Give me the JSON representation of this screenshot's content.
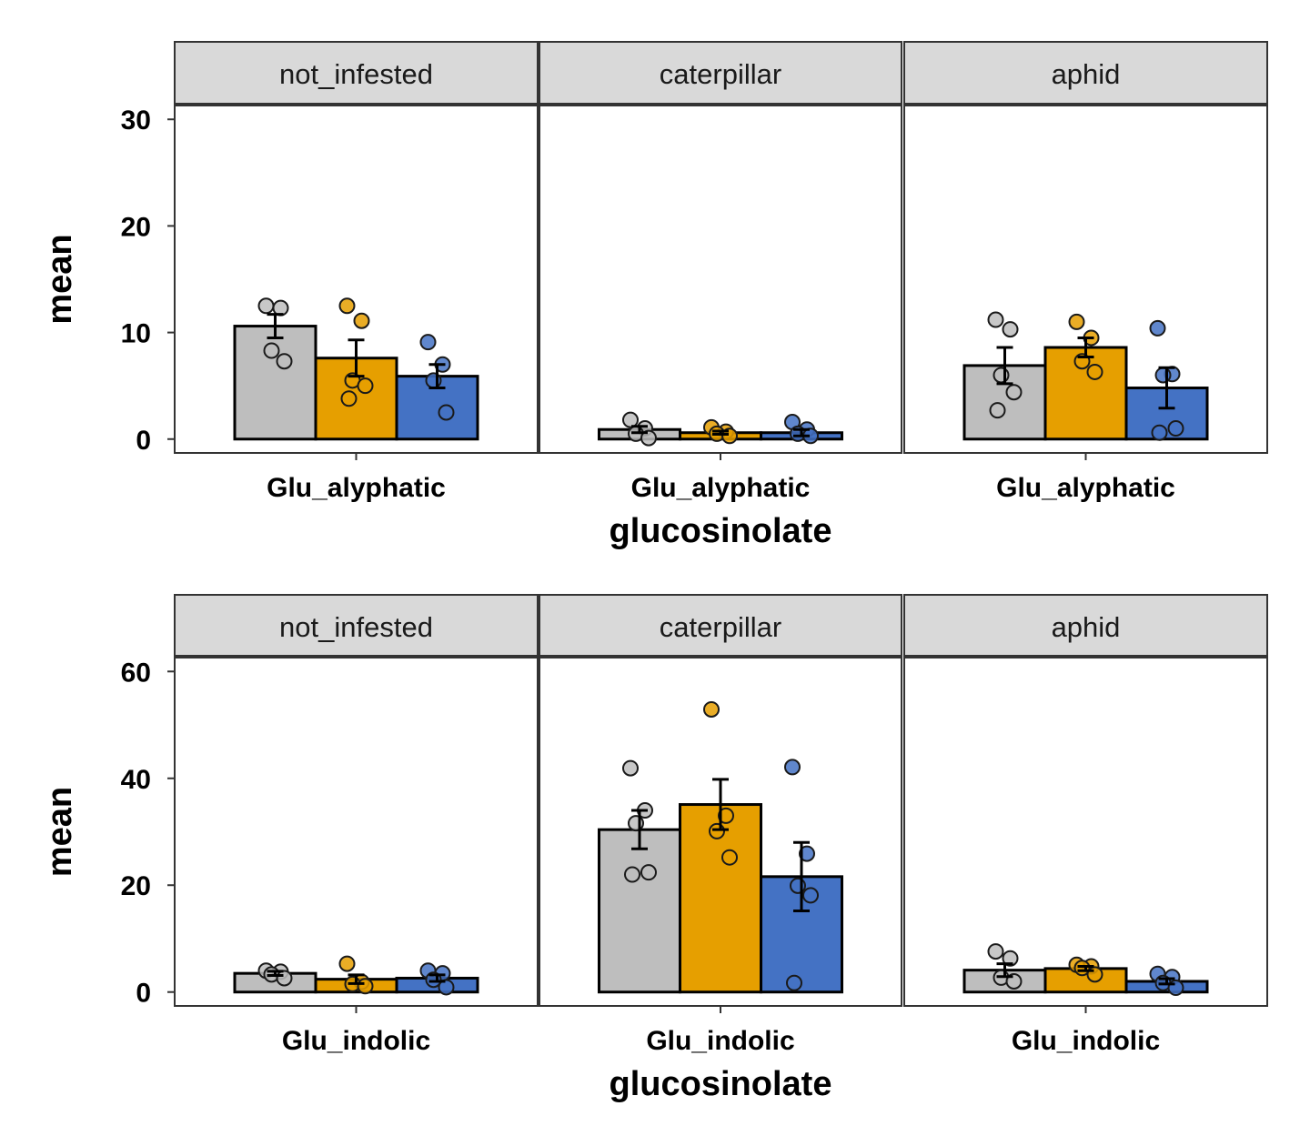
{
  "colors": {
    "strip_fill": "#d9d9d9",
    "frame": "#333333",
    "background": "#ffffff",
    "series": [
      "#bebebe",
      "#e69f00",
      "#4472c4"
    ]
  },
  "chart_data": [
    {
      "type": "bar",
      "ylabel": "mean",
      "xlabel": "glucosinolate",
      "ylim": [
        -1.3,
        31.3
      ],
      "yticks": [
        0,
        10,
        20,
        30
      ],
      "grid": false,
      "legend": "none",
      "facets": [
        {
          "label": "not_infested",
          "category": "Glu_alyphatic",
          "bars": [
            {
              "mean": 10.6,
              "se": 1.1,
              "points": [
                12.5,
                12.3,
                8.3,
                7.3
              ]
            },
            {
              "mean": 7.6,
              "se": 1.7,
              "points": [
                12.5,
                11.1,
                5.5,
                5.0,
                3.8
              ]
            },
            {
              "mean": 5.9,
              "se": 1.1,
              "points": [
                9.1,
                7.0,
                5.5,
                2.5
              ]
            }
          ]
        },
        {
          "label": "caterpillar",
          "category": "Glu_alyphatic",
          "bars": [
            {
              "mean": 0.9,
              "se": 0.3,
              "points": [
                1.8,
                1.0,
                0.5,
                0.1
              ]
            },
            {
              "mean": 0.6,
              "se": 0.15,
              "points": [
                1.1,
                0.7,
                0.5,
                0.3
              ]
            },
            {
              "mean": 0.6,
              "se": 0.3,
              "points": [
                1.6,
                0.9,
                0.5,
                0.3
              ]
            }
          ]
        },
        {
          "label": "aphid",
          "category": "Glu_alyphatic",
          "bars": [
            {
              "mean": 6.9,
              "se": 1.7,
              "points": [
                11.2,
                10.3,
                6.0,
                4.4,
                2.7
              ]
            },
            {
              "mean": 8.6,
              "se": 0.9,
              "points": [
                11.0,
                9.5,
                7.3,
                6.3
              ]
            },
            {
              "mean": 4.8,
              "se": 1.9,
              "points": [
                10.4,
                6.1,
                6.0,
                1.0,
                0.6
              ]
            }
          ]
        }
      ]
    },
    {
      "type": "bar",
      "ylabel": "mean",
      "xlabel": "glucosinolate",
      "ylim": [
        -2.6,
        62.6
      ],
      "yticks": [
        0,
        20,
        40,
        60
      ],
      "grid": false,
      "legend": "none",
      "facets": [
        {
          "label": "not_infested",
          "category": "Glu_indolic",
          "bars": [
            {
              "mean": 3.5,
              "se": 0.4,
              "points": [
                4.0,
                3.8,
                3.3,
                2.6
              ]
            },
            {
              "mean": 2.4,
              "se": 0.8,
              "points": [
                5.3,
                1.9,
                1.5,
                1.1
              ]
            },
            {
              "mean": 2.6,
              "se": 0.6,
              "points": [
                4.0,
                3.5,
                2.3,
                0.9
              ]
            }
          ]
        },
        {
          "label": "caterpillar",
          "category": "Glu_indolic",
          "bars": [
            {
              "mean": 30.4,
              "se": 3.6,
              "points": [
                41.9,
                34.0,
                31.6,
                22.4,
                22.0
              ]
            },
            {
              "mean": 35.1,
              "se": 4.7,
              "points": [
                52.9,
                33.0,
                30.1,
                25.2
              ]
            },
            {
              "mean": 21.6,
              "se": 6.4,
              "points": [
                42.1,
                25.9,
                19.9,
                18.1,
                1.7
              ]
            }
          ]
        },
        {
          "label": "aphid",
          "category": "Glu_indolic",
          "bars": [
            {
              "mean": 4.1,
              "se": 1.2,
              "points": [
                7.6,
                6.3,
                2.7,
                2.0
              ]
            },
            {
              "mean": 4.4,
              "se": 0.4,
              "points": [
                5.1,
                4.8,
                4.5,
                3.3
              ]
            },
            {
              "mean": 2.0,
              "se": 0.5,
              "points": [
                3.4,
                2.8,
                1.7,
                0.8
              ]
            }
          ]
        }
      ]
    }
  ]
}
